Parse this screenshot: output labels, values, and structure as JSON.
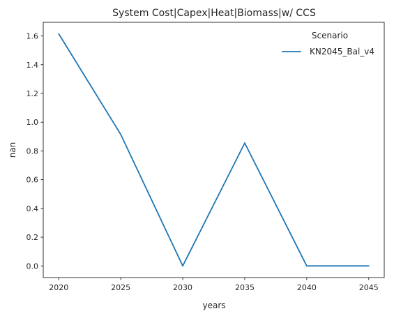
{
  "chart_data": {
    "type": "line",
    "title": "System Cost|Capex|Heat|Biomass|w/ CCS",
    "xlabel": "years",
    "ylabel": "nan",
    "x": [
      2020,
      2025,
      2030,
      2035,
      2040,
      2045
    ],
    "xticks": [
      "2020",
      "2025",
      "2030",
      "2035",
      "2040",
      "2045"
    ],
    "yticks": [
      "0.0",
      "0.2",
      "0.4",
      "0.6",
      "0.8",
      "1.0",
      "1.2",
      "1.4",
      "1.6"
    ],
    "xlim": [
      2018.75,
      2046.25
    ],
    "ylim": [
      -0.081,
      1.695
    ],
    "grid": false,
    "legend": {
      "title": "Scenario",
      "placement": "top-right"
    },
    "series": [
      {
        "name": "KN2045_Bal_v4",
        "color": "#1f77b4",
        "values": [
          1.615,
          0.915,
          0.0,
          0.855,
          0.0,
          0.0
        ]
      }
    ]
  }
}
